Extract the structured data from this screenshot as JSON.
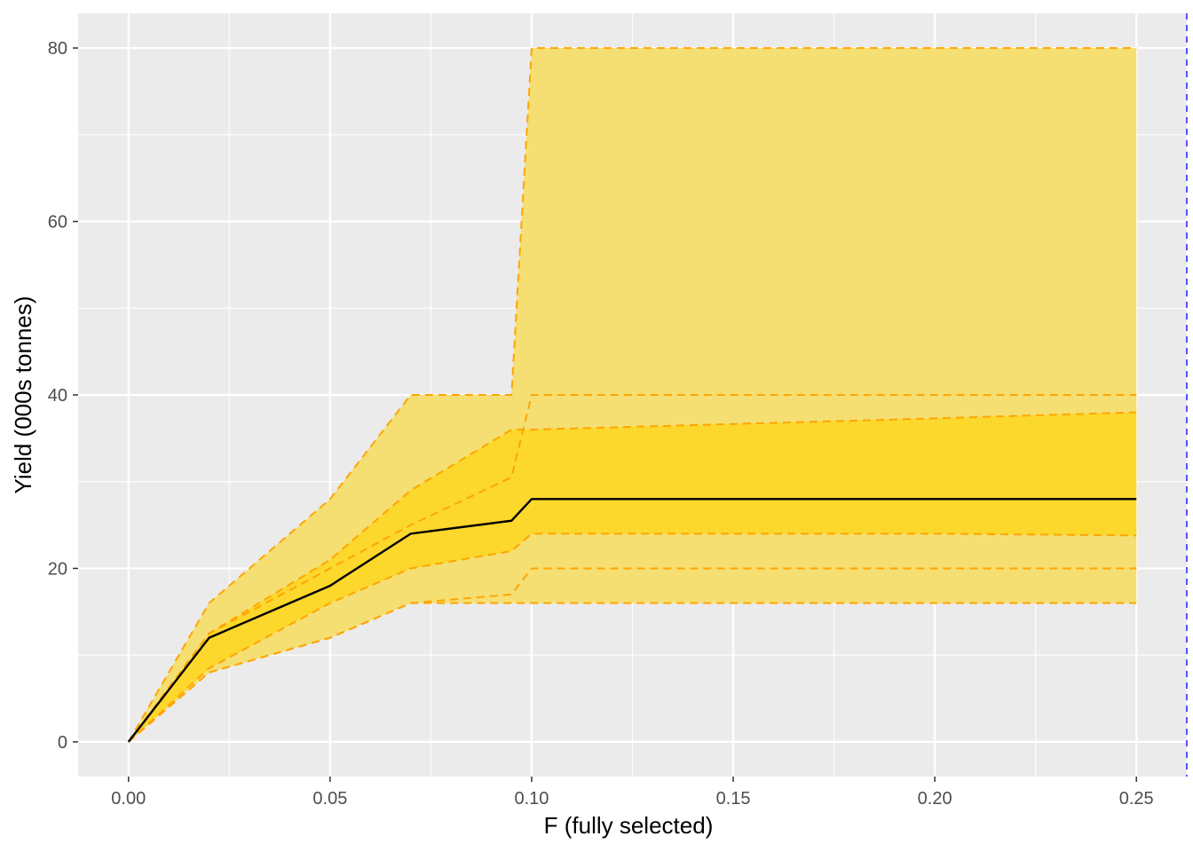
{
  "chart_data": {
    "type": "area",
    "title": "",
    "xlabel": "F (fully selected)",
    "ylabel": "Yield (000s tonnes)",
    "xlim": [
      -0.0125,
      0.2625
    ],
    "ylim": [
      -4,
      84
    ],
    "x_ticks": [
      0.0,
      0.05,
      0.1,
      0.15,
      0.2,
      0.25
    ],
    "x_tick_labels": [
      "0.00",
      "0.05",
      "0.10",
      "0.15",
      "0.20",
      "0.25"
    ],
    "y_ticks": [
      0,
      20,
      40,
      60,
      80
    ],
    "y_tick_labels": [
      "0",
      "20",
      "40",
      "60",
      "80"
    ],
    "grid": true,
    "x": [
      0.0,
      0.02,
      0.05,
      0.07,
      0.095,
      0.1,
      0.2,
      0.25
    ],
    "series": [
      {
        "role": "outer_lower",
        "values": [
          0,
          8,
          12,
          16,
          17,
          20,
          20,
          20
        ]
      },
      {
        "role": "outer_upper",
        "values": [
          0,
          16,
          28,
          40,
          40,
          80,
          80,
          80
        ]
      },
      {
        "role": "inner_lower",
        "values": [
          0,
          8.5,
          16,
          20,
          22,
          24,
          24,
          23.8
        ]
      },
      {
        "role": "inner_upper",
        "values": [
          0,
          12.5,
          21,
          29,
          36,
          36,
          37.3,
          38
        ]
      },
      {
        "role": "inner_mid_upper",
        "values": [
          0,
          12.5,
          20,
          25,
          30.5,
          40,
          40,
          40
        ]
      },
      {
        "role": "floor",
        "values": [
          0,
          8,
          12,
          16,
          16,
          16,
          16,
          16
        ]
      },
      {
        "role": "median",
        "values": [
          0,
          12,
          18,
          24,
          25.5,
          28,
          28,
          28
        ]
      }
    ],
    "reference_line_x": 0.2625,
    "colors": {
      "panel_background": "#ebebeb",
      "grid": "#ffffff",
      "outer_band": "#f5df72",
      "inner_band": "#fcd72c",
      "band_edge": "#ffa500",
      "median_line": "#000000",
      "reference_line": "#0000ff"
    }
  }
}
